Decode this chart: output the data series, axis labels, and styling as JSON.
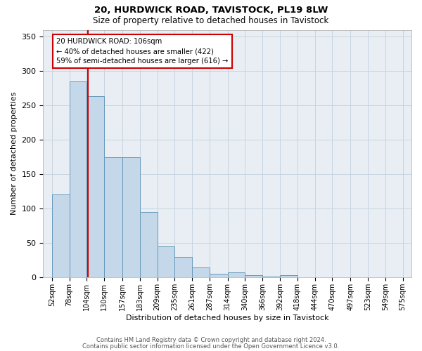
{
  "title1": "20, HURDWICK ROAD, TAVISTOCK, PL19 8LW",
  "title2": "Size of property relative to detached houses in Tavistock",
  "xlabel": "Distribution of detached houses by size in Tavistock",
  "ylabel": "Number of detached properties",
  "categories": [
    "52sqm",
    "78sqm",
    "104sqm",
    "130sqm",
    "157sqm",
    "183sqm",
    "209sqm",
    "235sqm",
    "261sqm",
    "287sqm",
    "314sqm",
    "340sqm",
    "366sqm",
    "392sqm",
    "418sqm",
    "444sqm",
    "470sqm",
    "497sqm",
    "523sqm",
    "549sqm",
    "575sqm"
  ],
  "bar_heights": [
    120,
    285,
    263,
    175,
    175,
    95,
    45,
    29,
    14,
    5,
    7,
    3,
    1,
    3,
    0,
    0,
    0,
    0,
    0,
    0
  ],
  "bin_edges": [
    52,
    78,
    104,
    130,
    157,
    183,
    209,
    235,
    261,
    287,
    314,
    340,
    366,
    392,
    418,
    444,
    470,
    497,
    523,
    549,
    575
  ],
  "annotation_text": "20 HURDWICK ROAD: 106sqm\n← 40% of detached houses are smaller (422)\n59% of semi-detached houses are larger (616) →",
  "property_line_x": 106,
  "bar_color": "#c5d8ea",
  "bar_edge_color": "#6699bb",
  "line_color": "#cc0000",
  "annotation_box_color": "#cc0000",
  "bg_color": "#e8eef4",
  "grid_color": "#c8d4e0",
  "footer1": "Contains HM Land Registry data © Crown copyright and database right 2024.",
  "footer2": "Contains public sector information licensed under the Open Government Licence v3.0.",
  "ylim": [
    0,
    360
  ],
  "yticks": [
    0,
    50,
    100,
    150,
    200,
    250,
    300,
    350
  ]
}
